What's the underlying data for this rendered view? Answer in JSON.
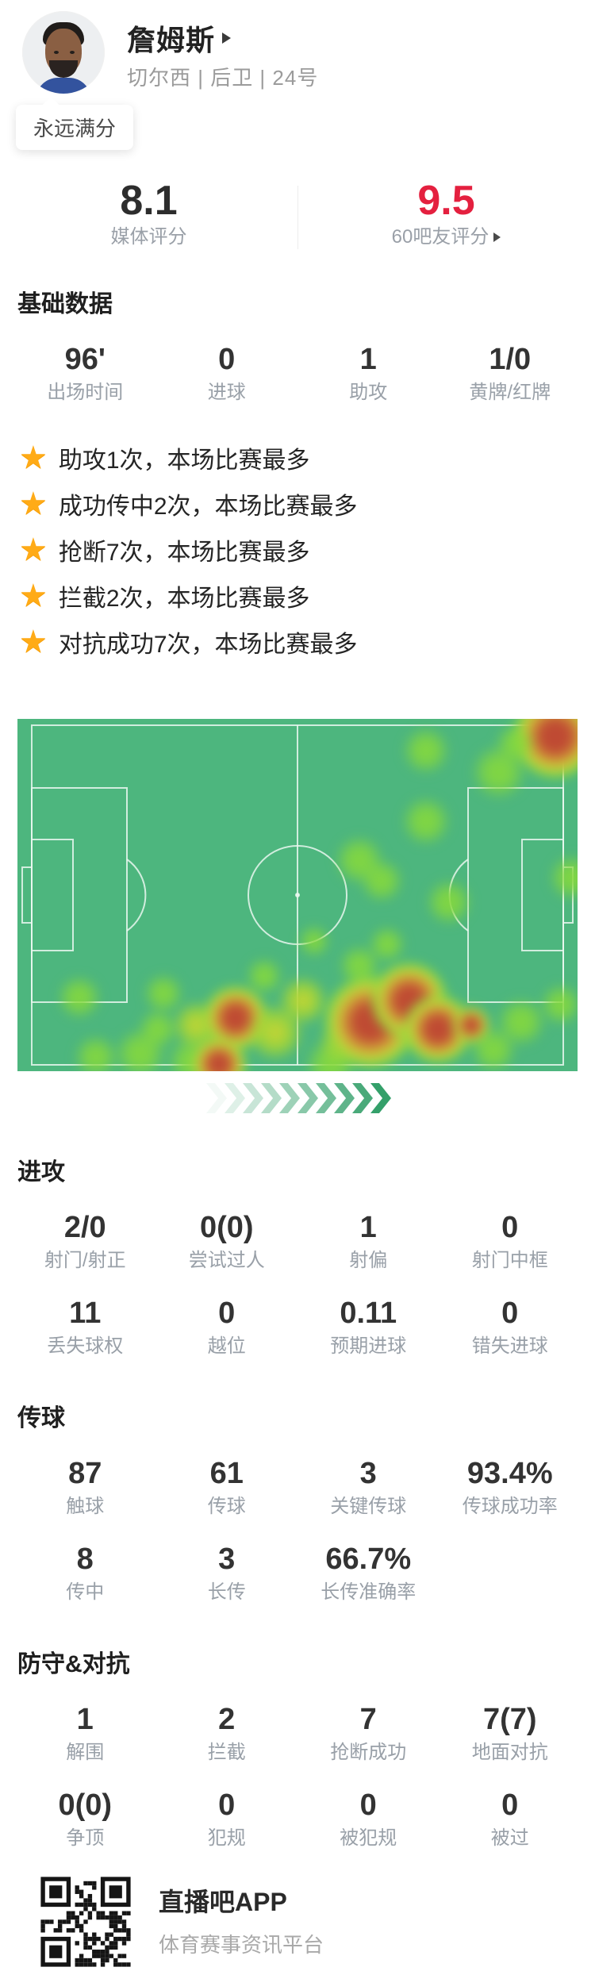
{
  "player": {
    "name": "詹姆斯",
    "meta": "切尔西 | 后卫 | 24号",
    "tag": "永远满分"
  },
  "ratings": {
    "media": {
      "value": "8.1",
      "label": "媒体评分"
    },
    "fans": {
      "value": "9.5",
      "label": "60吧友评分"
    }
  },
  "sections": {
    "basic": {
      "title": "基础数据",
      "stats": [
        {
          "value": "96'",
          "label": "出场时间"
        },
        {
          "value": "0",
          "label": "进球"
        },
        {
          "value": "1",
          "label": "助攻"
        },
        {
          "value": "1/0",
          "label": "黄牌/红牌"
        }
      ]
    },
    "highlights": [
      "助攻1次，本场比赛最多",
      "成功传中2次，本场比赛最多",
      "抢断7次，本场比赛最多",
      "拦截2次，本场比赛最多",
      "对抗成功7次，本场比赛最多"
    ],
    "attack": {
      "title": "进攻",
      "row1": [
        {
          "value": "2/0",
          "label": "射门/射正"
        },
        {
          "value": "0(0)",
          "label": "尝试过人"
        },
        {
          "value": "1",
          "label": "射偏"
        },
        {
          "value": "0",
          "label": "射门中框"
        }
      ],
      "row2": [
        {
          "value": "11",
          "label": "丢失球权"
        },
        {
          "value": "0",
          "label": "越位"
        },
        {
          "value": "0.11",
          "label": "预期进球"
        },
        {
          "value": "0",
          "label": "错失进球"
        }
      ]
    },
    "passing": {
      "title": "传球",
      "row1": [
        {
          "value": "87",
          "label": "触球"
        },
        {
          "value": "61",
          "label": "传球"
        },
        {
          "value": "3",
          "label": "关键传球"
        },
        {
          "value": "93.4%",
          "label": "传球成功率"
        }
      ],
      "row2": [
        {
          "value": "8",
          "label": "传中"
        },
        {
          "value": "3",
          "label": "长传"
        },
        {
          "value": "66.7%",
          "label": "长传准确率"
        }
      ]
    },
    "defense": {
      "title": "防守&对抗",
      "row1": [
        {
          "value": "1",
          "label": "解围"
        },
        {
          "value": "2",
          "label": "拦截"
        },
        {
          "value": "7",
          "label": "抢断成功"
        },
        {
          "value": "7(7)",
          "label": "地面对抗"
        }
      ],
      "row2": [
        {
          "value": "0(0)",
          "label": "争顶"
        },
        {
          "value": "0",
          "label": "犯规"
        },
        {
          "value": "0",
          "label": "被犯规"
        },
        {
          "value": "0",
          "label": "被过"
        }
      ]
    }
  },
  "heatmap": {
    "base_color": "#4db67e",
    "blobs": [
      [
        96,
        5,
        "r",
        105
      ],
      [
        73,
        9,
        "g",
        60
      ],
      [
        86,
        15,
        "g",
        70
      ],
      [
        89,
        7,
        "g",
        50
      ],
      [
        73,
        29,
        "g",
        62
      ],
      [
        61,
        40,
        "g",
        62
      ],
      [
        65,
        46,
        "g",
        55
      ],
      [
        77,
        52,
        "g",
        58
      ],
      [
        99,
        45,
        "g",
        58
      ],
      [
        61,
        70,
        "g",
        52
      ],
      [
        66,
        64,
        "g",
        46
      ],
      [
        53,
        63,
        "g",
        40
      ],
      [
        44,
        73,
        "g",
        46
      ],
      [
        11,
        79,
        "g",
        55
      ],
      [
        26,
        78,
        "g",
        50
      ],
      [
        14,
        96,
        "g",
        55
      ],
      [
        22,
        95,
        "g",
        65
      ],
      [
        31,
        97,
        "g",
        60
      ],
      [
        25,
        88,
        "g",
        50
      ],
      [
        32,
        87,
        "y",
        60
      ],
      [
        39,
        85,
        "r",
        80
      ],
      [
        36,
        98,
        "r",
        68
      ],
      [
        46,
        89,
        "y",
        70
      ],
      [
        51,
        80,
        "y",
        60
      ],
      [
        56,
        98,
        "g",
        64
      ],
      [
        58,
        92,
        "y",
        55
      ],
      [
        63,
        86,
        "r",
        115
      ],
      [
        70,
        80,
        "r",
        95
      ],
      [
        75,
        88,
        "r",
        85
      ],
      [
        81,
        87,
        "r",
        46
      ],
      [
        85,
        94,
        "g",
        58
      ],
      [
        90,
        86,
        "g",
        62
      ],
      [
        97,
        81,
        "g",
        52
      ]
    ]
  },
  "footer": {
    "app_name": "直播吧APP",
    "subtitle": "体育赛事资讯平台"
  },
  "colors": {
    "accent_red": "#e4203f",
    "star_yellow": "#ffab17",
    "pitch_green": "#4db67e",
    "chevron_green": "#34a06a"
  }
}
